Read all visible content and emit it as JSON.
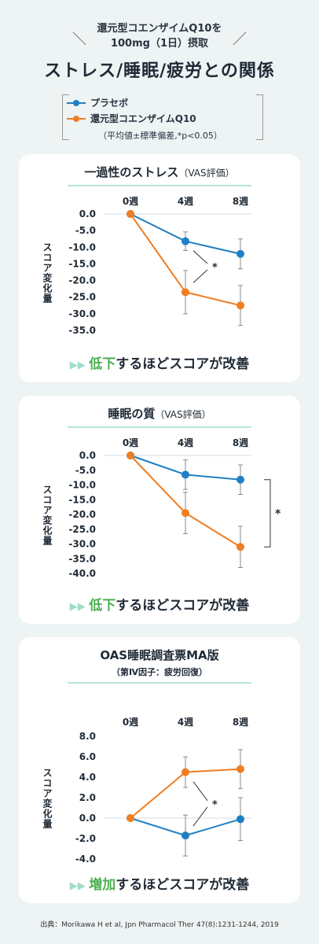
{
  "header": {
    "line1": "還元型コエンザイムQ10を",
    "line2": "100mg（1日）摂取",
    "title": "ストレス/睡眠/疲労との関係"
  },
  "legend": {
    "items": [
      {
        "label": "プラセボ",
        "color": "#1f7fc4"
      },
      {
        "label": "還元型コエンザイムQ10",
        "color": "#ef7d22"
      }
    ],
    "note": "（平均値±標準偏差,*p<0.05）"
  },
  "colors": {
    "placebo": "#1f7fc4",
    "coq10": "#ef7d22",
    "accent_green": "#4caf50",
    "arrow": "#9fdccb"
  },
  "source": "出典：Morikawa H et al, Jpn Pharmacol Ther 47(8):1231-1244, 2019",
  "chart_data": [
    {
      "type": "line",
      "title": "一過性のストレス",
      "title_suffix": "（VAS評価）",
      "subtitle": "",
      "categories": [
        "0週",
        "4週",
        "8週"
      ],
      "ylabel": "スコア変化量",
      "yticks": [
        "0.0",
        "-5.0",
        "-10.0",
        "-15.0",
        "-20.0",
        "-25.0",
        "-30.0",
        "-35.0"
      ],
      "ylim": [
        -35,
        0
      ],
      "series": [
        {
          "name": "プラセボ",
          "values": [
            0,
            -8.2,
            -12.0
          ],
          "err": [
            0,
            2.8,
            4.5
          ]
        },
        {
          "name": "還元型コエンザイムQ10",
          "values": [
            0,
            -23.5,
            -27.5
          ],
          "err": [
            0,
            6.5,
            6.0
          ]
        }
      ],
      "significance": "*",
      "footer": {
        "arrows": "▶▶",
        "highlight": "低下",
        "rest": "するほどスコアが改善"
      }
    },
    {
      "type": "line",
      "title": "睡眠の質",
      "title_suffix": "（VAS評価）",
      "subtitle": "",
      "categories": [
        "0週",
        "4週",
        "8週"
      ],
      "ylabel": "スコア変化量",
      "yticks": [
        "0.0",
        "-5.0",
        "-10.0",
        "-15.0",
        "-20.0",
        "-25.0",
        "-30.0",
        "-35.0",
        "-40.0"
      ],
      "ylim": [
        -40,
        0
      ],
      "series": [
        {
          "name": "プラセボ",
          "values": [
            0,
            -6.5,
            -8.2
          ],
          "err": [
            0,
            5.0,
            5.0
          ]
        },
        {
          "name": "還元型コエンザイムQ10",
          "values": [
            0,
            -19.5,
            -31.0
          ],
          "err": [
            0,
            7.0,
            7.0
          ]
        }
      ],
      "significance": "*",
      "footer": {
        "arrows": "▶▶",
        "highlight": "低下",
        "rest": "するほどスコアが改善"
      }
    },
    {
      "type": "line",
      "title": "OAS睡眠調査票MA版",
      "title_suffix": "",
      "subtitle": "（第Ⅳ因子：疲労回復）",
      "categories": [
        "0週",
        "4週",
        "8週"
      ],
      "ylabel": "スコア変化量",
      "yticks": [
        "8.0",
        "6.0",
        "4.0",
        "2.0",
        "0.0",
        "-2.0",
        "-4.0"
      ],
      "ylim": [
        -4,
        8
      ],
      "series": [
        {
          "name": "プラセボ",
          "values": [
            0,
            -1.7,
            -0.1
          ],
          "err": [
            0,
            2.0,
            2.1
          ]
        },
        {
          "name": "還元型コエンザイムQ10",
          "values": [
            0,
            4.5,
            4.8
          ],
          "err": [
            0,
            1.5,
            1.9
          ]
        }
      ],
      "significance": "*",
      "footer": {
        "arrows": "▶▶",
        "highlight": "増加",
        "rest": "するほどスコアが改善"
      }
    }
  ]
}
